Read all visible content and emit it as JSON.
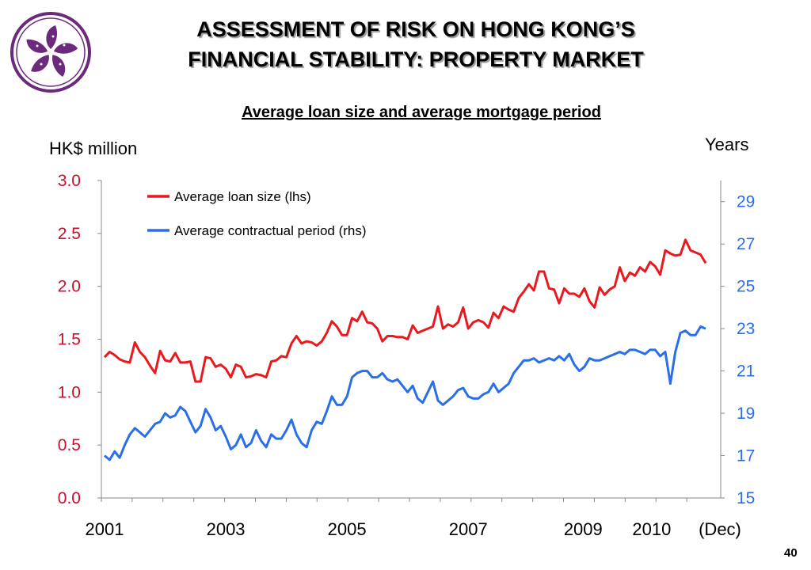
{
  "header": {
    "title_line1": "ASSESSMENT OF RISK ON HONG KONG’S",
    "title_line2": "FINANCIAL STABILITY: PROPERTY MARKET"
  },
  "page_number": "40",
  "colors": {
    "loan": "#e8191f",
    "period": "#2b6fe8",
    "left_axis_text": "#c8102e",
    "right_axis_text": "#2b6fe8",
    "logo": "#6b2a7b"
  },
  "chart_data": {
    "type": "line",
    "title": "Average loan size and average mortgage period",
    "ylabel_left": "HK$ million",
    "ylabel_right": "Years",
    "ylim_left": [
      0,
      3.0
    ],
    "ylim_right": [
      15,
      30
    ],
    "yticks_left": [
      "0.0",
      "0.5",
      "1.0",
      "1.5",
      "2.0",
      "2.5",
      "3.0"
    ],
    "yticks_right": [
      "15",
      "17",
      "19",
      "21",
      "23",
      "25",
      "27",
      "29"
    ],
    "x_tick_labels": [
      {
        "label": "2001",
        "pos": 0
      },
      {
        "label": "2003",
        "pos": 24
      },
      {
        "label": "2005",
        "pos": 48
      },
      {
        "label": "2007",
        "pos": 72
      },
      {
        "label": "2009",
        "pos": 96
      },
      {
        "label": "2010",
        "pos": 108
      },
      {
        "label": "(Dec)",
        "pos": 119
      }
    ],
    "legend_position": "top-left",
    "series": [
      {
        "name": "Average loan size (lhs)",
        "axis": "left",
        "values": [
          1.33,
          1.38,
          1.35,
          1.31,
          1.29,
          1.28,
          1.47,
          1.38,
          1.33,
          1.25,
          1.18,
          1.39,
          1.3,
          1.29,
          1.37,
          1.28,
          1.28,
          1.29,
          1.1,
          1.1,
          1.33,
          1.32,
          1.24,
          1.26,
          1.22,
          1.14,
          1.26,
          1.24,
          1.14,
          1.15,
          1.17,
          1.16,
          1.14,
          1.29,
          1.3,
          1.34,
          1.33,
          1.46,
          1.53,
          1.46,
          1.48,
          1.47,
          1.44,
          1.48,
          1.56,
          1.67,
          1.62,
          1.54,
          1.54,
          1.7,
          1.67,
          1.76,
          1.66,
          1.65,
          1.6,
          1.48,
          1.53,
          1.53,
          1.52,
          1.52,
          1.5,
          1.63,
          1.56,
          1.58,
          1.6,
          1.62,
          1.81,
          1.6,
          1.64,
          1.62,
          1.66,
          1.8,
          1.6,
          1.66,
          1.68,
          1.66,
          1.61,
          1.75,
          1.7,
          1.81,
          1.78,
          1.76,
          1.89,
          1.95,
          2.02,
          1.96,
          2.14,
          2.14,
          1.98,
          1.97,
          1.84,
          1.98,
          1.93,
          1.93,
          1.9,
          1.98,
          1.86,
          1.8,
          1.99,
          1.92,
          1.97,
          2.0,
          2.18,
          2.05,
          2.13,
          2.1,
          2.18,
          2.14,
          2.23,
          2.19,
          2.11,
          2.34,
          2.31,
          2.29,
          2.3,
          2.44,
          2.34,
          2.32,
          2.3,
          2.22
        ]
      },
      {
        "name": "Average contractual period (rhs)",
        "axis": "right",
        "values": [
          17.0,
          16.8,
          17.2,
          16.9,
          17.5,
          18.0,
          18.3,
          18.1,
          17.9,
          18.2,
          18.5,
          18.6,
          19.0,
          18.8,
          18.9,
          19.3,
          19.1,
          18.6,
          18.1,
          18.4,
          19.2,
          18.8,
          18.2,
          18.4,
          17.9,
          17.3,
          17.5,
          18.0,
          17.4,
          17.6,
          18.2,
          17.7,
          17.4,
          18.0,
          17.8,
          17.8,
          18.2,
          18.7,
          18.0,
          17.6,
          17.4,
          18.2,
          18.6,
          18.5,
          19.1,
          19.8,
          19.4,
          19.4,
          19.8,
          20.7,
          20.9,
          21.0,
          21.0,
          20.7,
          20.7,
          20.9,
          20.6,
          20.5,
          20.6,
          20.3,
          20.0,
          20.3,
          19.7,
          19.5,
          20.0,
          20.5,
          19.6,
          19.4,
          19.6,
          19.8,
          20.1,
          20.2,
          19.8,
          19.7,
          19.7,
          19.9,
          20.0,
          20.4,
          20.0,
          20.2,
          20.4,
          20.9,
          21.2,
          21.5,
          21.5,
          21.6,
          21.4,
          21.5,
          21.6,
          21.5,
          21.7,
          21.5,
          21.8,
          21.3,
          21.0,
          21.2,
          21.6,
          21.5,
          21.5,
          21.6,
          21.7,
          21.8,
          21.9,
          21.8,
          22.0,
          22.0,
          21.9,
          21.8,
          22.0,
          22.0,
          21.7,
          21.9,
          20.4,
          21.9,
          22.8,
          22.9,
          22.7,
          22.7,
          23.1,
          23.0
        ]
      }
    ]
  }
}
